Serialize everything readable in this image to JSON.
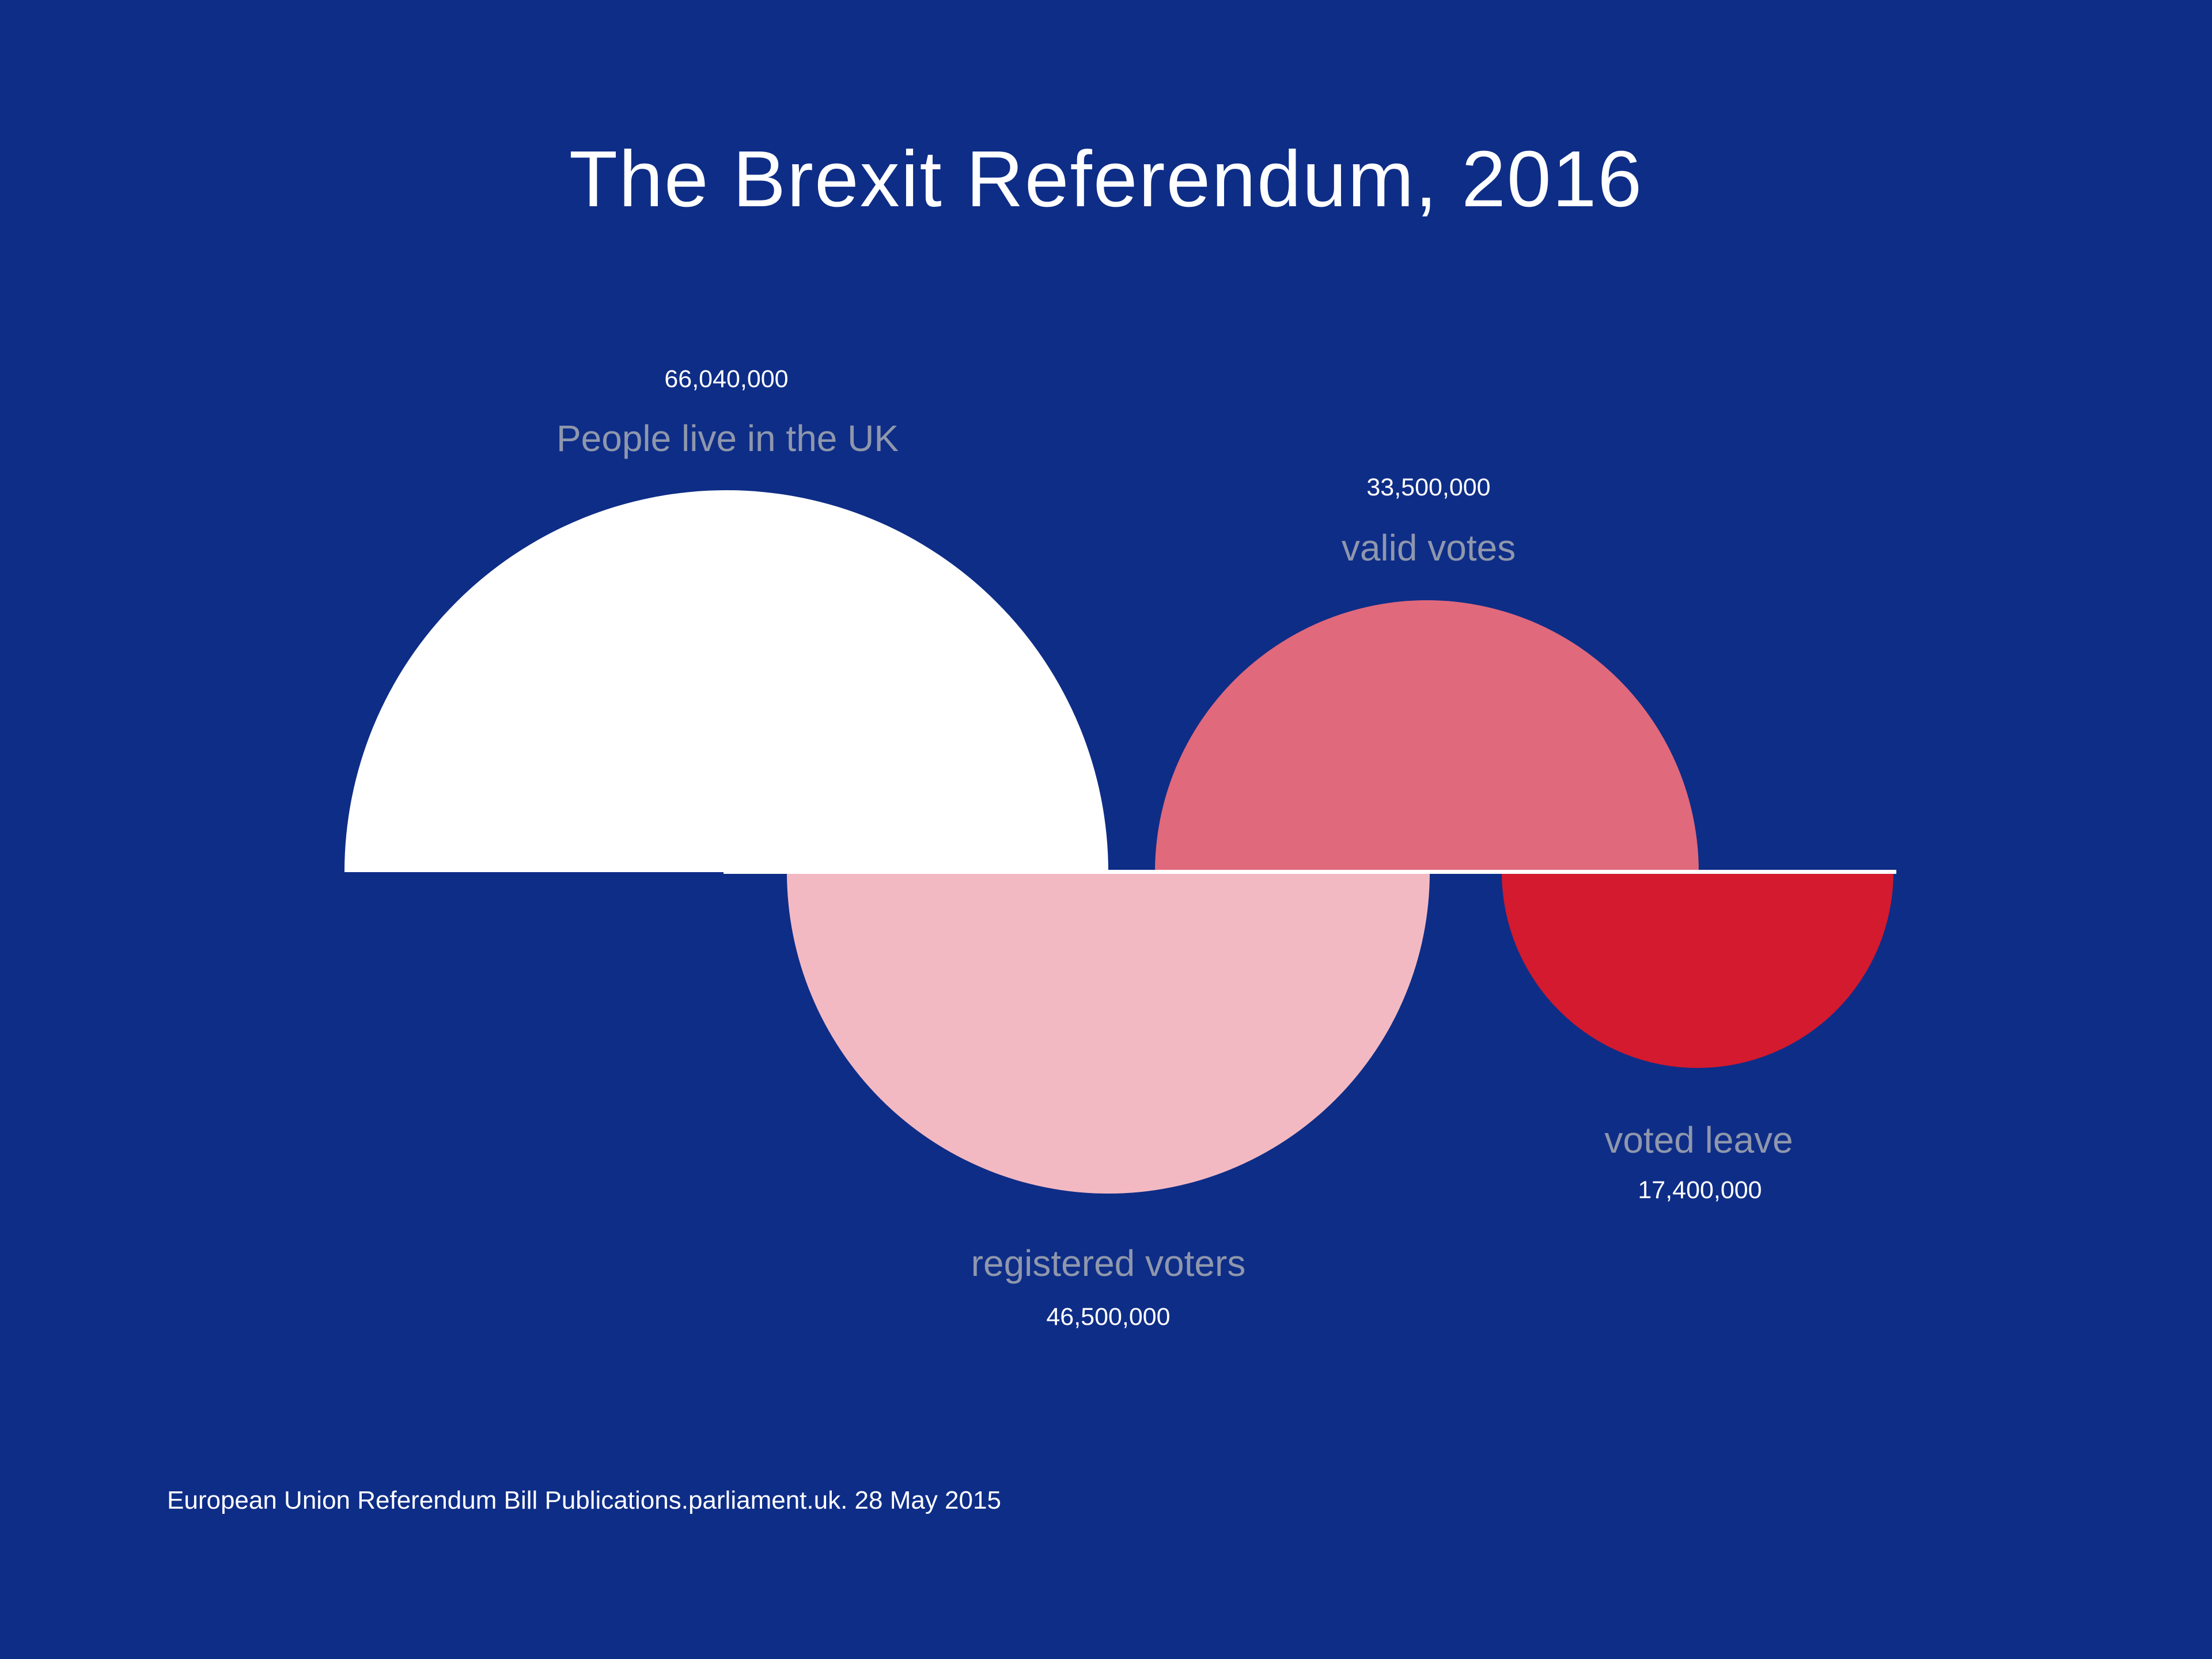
{
  "title": "The Brexit Referendum, 2016",
  "source": "European Union Referendum Bill Publications.parliament.uk. 28 May 2015",
  "colors": {
    "background": "#0e2d87",
    "uk_population": "#ffffff",
    "registered_voters": "#f3b9c2",
    "valid_votes": "#e0697c",
    "voted_leave": "#d31a2e",
    "category_label": "#8f97ac",
    "value_label": "#ffffff",
    "baseline": "#ffffff"
  },
  "chart_data": {
    "type": "area",
    "subtype": "proportional-semicircle-area",
    "title": "The Brexit Referendum, 2016",
    "note": "Each semicircle's size is proportional to its value; semicircles alternate above and below a shared white baseline",
    "legend_position": "none",
    "grid": false,
    "series": [
      {
        "name": "People live in the UK",
        "value": 66040000,
        "value_label": "66,040,000",
        "orientation": "up",
        "color": "#ffffff"
      },
      {
        "name": "registered voters",
        "value": 46500000,
        "value_label": "46,500,000",
        "orientation": "down",
        "color": "#f3b9c2"
      },
      {
        "name": "valid votes",
        "value": 33500000,
        "value_label": "33,500,000",
        "orientation": "up",
        "color": "#e0697c"
      },
      {
        "name": "voted leave",
        "value": 17400000,
        "value_label": "17,400,000",
        "orientation": "down",
        "color": "#d31a2e"
      }
    ],
    "source": "European Union Referendum Bill Publications.parliament.uk. 28 May 2015"
  }
}
